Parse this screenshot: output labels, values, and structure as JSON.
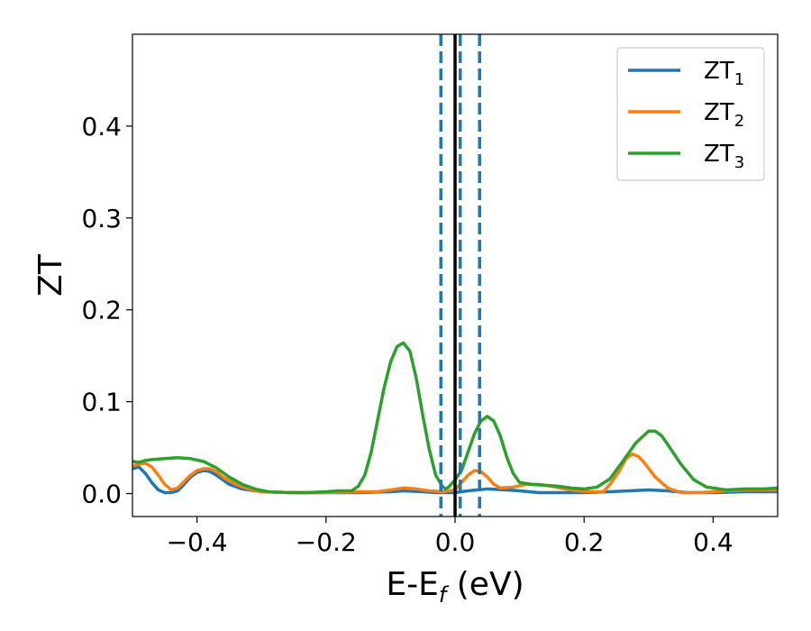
{
  "chart_data": {
    "type": "line",
    "title": "",
    "xlabel": {
      "main": "E-E",
      "sub": "f",
      "tail": " (eV)"
    },
    "ylabel": "ZT",
    "xlim": [
      -0.5,
      0.5
    ],
    "ylim": [
      -0.025,
      0.5
    ],
    "x_ticks": [
      -0.4,
      -0.2,
      0.0,
      0.2,
      0.4
    ],
    "x_tick_labels": [
      "−0.4",
      "−0.2",
      "0.0",
      "0.2",
      "0.4"
    ],
    "y_ticks": [
      0.0,
      0.1,
      0.2,
      0.3,
      0.4
    ],
    "y_tick_labels": [
      "0.0",
      "0.1",
      "0.2",
      "0.3",
      "0.4"
    ],
    "grid": false,
    "legend_position": "top-right",
    "vertical_lines": [
      {
        "x": 0.0,
        "style": "solid",
        "color": "#000000"
      },
      {
        "x": -0.022,
        "style": "dashed",
        "color": "#1f77b4"
      },
      {
        "x": 0.008,
        "style": "dashed",
        "color": "#1f77b4"
      },
      {
        "x": 0.038,
        "style": "dashed",
        "color": "#1f77b4"
      }
    ],
    "series": [
      {
        "name": {
          "main": "ZT",
          "sub": "1"
        },
        "color": "#1f77b4",
        "points": [
          [
            -0.5,
            0.027
          ],
          [
            -0.49,
            0.029
          ],
          [
            -0.48,
            0.022
          ],
          [
            -0.47,
            0.012
          ],
          [
            -0.46,
            0.004
          ],
          [
            -0.45,
            0.001
          ],
          [
            -0.44,
            0.001
          ],
          [
            -0.43,
            0.003
          ],
          [
            -0.42,
            0.01
          ],
          [
            -0.41,
            0.018
          ],
          [
            -0.4,
            0.023
          ],
          [
            -0.39,
            0.025
          ],
          [
            -0.38,
            0.024
          ],
          [
            -0.37,
            0.02
          ],
          [
            -0.36,
            0.015
          ],
          [
            -0.35,
            0.01
          ],
          [
            -0.33,
            0.005
          ],
          [
            -0.3,
            0.002
          ],
          [
            -0.25,
            0.001
          ],
          [
            -0.2,
            0.001
          ],
          [
            -0.15,
            0.001
          ],
          [
            -0.1,
            0.002
          ],
          [
            -0.08,
            0.003
          ],
          [
            -0.05,
            0.002
          ],
          [
            -0.03,
            0.001
          ],
          [
            -0.01,
            0.001
          ],
          [
            0.0,
            0.001
          ],
          [
            0.02,
            0.003
          ],
          [
            0.05,
            0.005
          ],
          [
            0.08,
            0.004
          ],
          [
            0.1,
            0.003
          ],
          [
            0.13,
            0.001
          ],
          [
            0.16,
            0.001
          ],
          [
            0.2,
            0.001
          ],
          [
            0.24,
            0.002
          ],
          [
            0.27,
            0.003
          ],
          [
            0.3,
            0.004
          ],
          [
            0.33,
            0.003
          ],
          [
            0.36,
            0.001
          ],
          [
            0.4,
            0.001
          ],
          [
            0.45,
            0.002
          ],
          [
            0.5,
            0.002
          ]
        ]
      },
      {
        "name": {
          "main": "ZT",
          "sub": "2"
        },
        "color": "#ff7f0e",
        "points": [
          [
            -0.5,
            0.03
          ],
          [
            -0.49,
            0.032
          ],
          [
            -0.48,
            0.033
          ],
          [
            -0.47,
            0.029
          ],
          [
            -0.46,
            0.02
          ],
          [
            -0.45,
            0.01
          ],
          [
            -0.44,
            0.004
          ],
          [
            -0.43,
            0.006
          ],
          [
            -0.42,
            0.013
          ],
          [
            -0.41,
            0.02
          ],
          [
            -0.4,
            0.025
          ],
          [
            -0.39,
            0.027
          ],
          [
            -0.38,
            0.027
          ],
          [
            -0.37,
            0.024
          ],
          [
            -0.36,
            0.018
          ],
          [
            -0.34,
            0.01
          ],
          [
            -0.32,
            0.005
          ],
          [
            -0.3,
            0.002
          ],
          [
            -0.25,
            0.001
          ],
          [
            -0.2,
            0.001
          ],
          [
            -0.15,
            0.002
          ],
          [
            -0.12,
            0.002
          ],
          [
            -0.1,
            0.004
          ],
          [
            -0.08,
            0.006
          ],
          [
            -0.06,
            0.005
          ],
          [
            -0.04,
            0.003
          ],
          [
            -0.02,
            0.002
          ],
          [
            0.0,
            0.004
          ],
          [
            0.01,
            0.012
          ],
          [
            0.02,
            0.02
          ],
          [
            0.03,
            0.025
          ],
          [
            0.04,
            0.024
          ],
          [
            0.05,
            0.018
          ],
          [
            0.06,
            0.01
          ],
          [
            0.07,
            0.006
          ],
          [
            0.09,
            0.007
          ],
          [
            0.11,
            0.01
          ],
          [
            0.13,
            0.01
          ],
          [
            0.15,
            0.008
          ],
          [
            0.17,
            0.005
          ],
          [
            0.19,
            0.003
          ],
          [
            0.21,
            0.002
          ],
          [
            0.23,
            0.002
          ],
          [
            0.24,
            0.01
          ],
          [
            0.255,
            0.025
          ],
          [
            0.265,
            0.038
          ],
          [
            0.275,
            0.043
          ],
          [
            0.285,
            0.04
          ],
          [
            0.295,
            0.032
          ],
          [
            0.31,
            0.018
          ],
          [
            0.33,
            0.006
          ],
          [
            0.35,
            0.001
          ],
          [
            0.38,
            0.001
          ],
          [
            0.42,
            0.003
          ],
          [
            0.45,
            0.004
          ],
          [
            0.48,
            0.004
          ],
          [
            0.5,
            0.004
          ]
        ]
      },
      {
        "name": {
          "main": "ZT",
          "sub": "3"
        },
        "color": "#2ca02c",
        "points": [
          [
            -0.5,
            0.035
          ],
          [
            -0.49,
            0.034
          ],
          [
            -0.48,
            0.036
          ],
          [
            -0.47,
            0.037
          ],
          [
            -0.45,
            0.038
          ],
          [
            -0.43,
            0.039
          ],
          [
            -0.41,
            0.038
          ],
          [
            -0.39,
            0.035
          ],
          [
            -0.37,
            0.028
          ],
          [
            -0.35,
            0.018
          ],
          [
            -0.33,
            0.01
          ],
          [
            -0.31,
            0.005
          ],
          [
            -0.29,
            0.002
          ],
          [
            -0.26,
            0.001
          ],
          [
            -0.23,
            0.001
          ],
          [
            -0.2,
            0.002
          ],
          [
            -0.18,
            0.003
          ],
          [
            -0.16,
            0.003
          ],
          [
            -0.15,
            0.008
          ],
          [
            -0.14,
            0.02
          ],
          [
            -0.13,
            0.045
          ],
          [
            -0.12,
            0.08
          ],
          [
            -0.11,
            0.115
          ],
          [
            -0.1,
            0.143
          ],
          [
            -0.09,
            0.16
          ],
          [
            -0.08,
            0.164
          ],
          [
            -0.07,
            0.155
          ],
          [
            -0.06,
            0.125
          ],
          [
            -0.05,
            0.085
          ],
          [
            -0.04,
            0.048
          ],
          [
            -0.03,
            0.02
          ],
          [
            -0.02,
            0.008
          ],
          [
            -0.015,
            0.005
          ],
          [
            -0.01,
            0.007
          ],
          [
            -0.005,
            0.011
          ],
          [
            0.0,
            0.015
          ],
          [
            0.01,
            0.025
          ],
          [
            0.02,
            0.045
          ],
          [
            0.03,
            0.065
          ],
          [
            0.04,
            0.079
          ],
          [
            0.05,
            0.084
          ],
          [
            0.06,
            0.079
          ],
          [
            0.07,
            0.063
          ],
          [
            0.08,
            0.04
          ],
          [
            0.09,
            0.022
          ],
          [
            0.1,
            0.012
          ],
          [
            0.12,
            0.01
          ],
          [
            0.14,
            0.009
          ],
          [
            0.16,
            0.008
          ],
          [
            0.18,
            0.006
          ],
          [
            0.2,
            0.005
          ],
          [
            0.22,
            0.007
          ],
          [
            0.24,
            0.016
          ],
          [
            0.26,
            0.035
          ],
          [
            0.28,
            0.055
          ],
          [
            0.3,
            0.068
          ],
          [
            0.31,
            0.068
          ],
          [
            0.32,
            0.063
          ],
          [
            0.33,
            0.053
          ],
          [
            0.35,
            0.032
          ],
          [
            0.37,
            0.015
          ],
          [
            0.39,
            0.007
          ],
          [
            0.42,
            0.004
          ],
          [
            0.45,
            0.005
          ],
          [
            0.48,
            0.005
          ],
          [
            0.5,
            0.006
          ]
        ]
      }
    ]
  }
}
